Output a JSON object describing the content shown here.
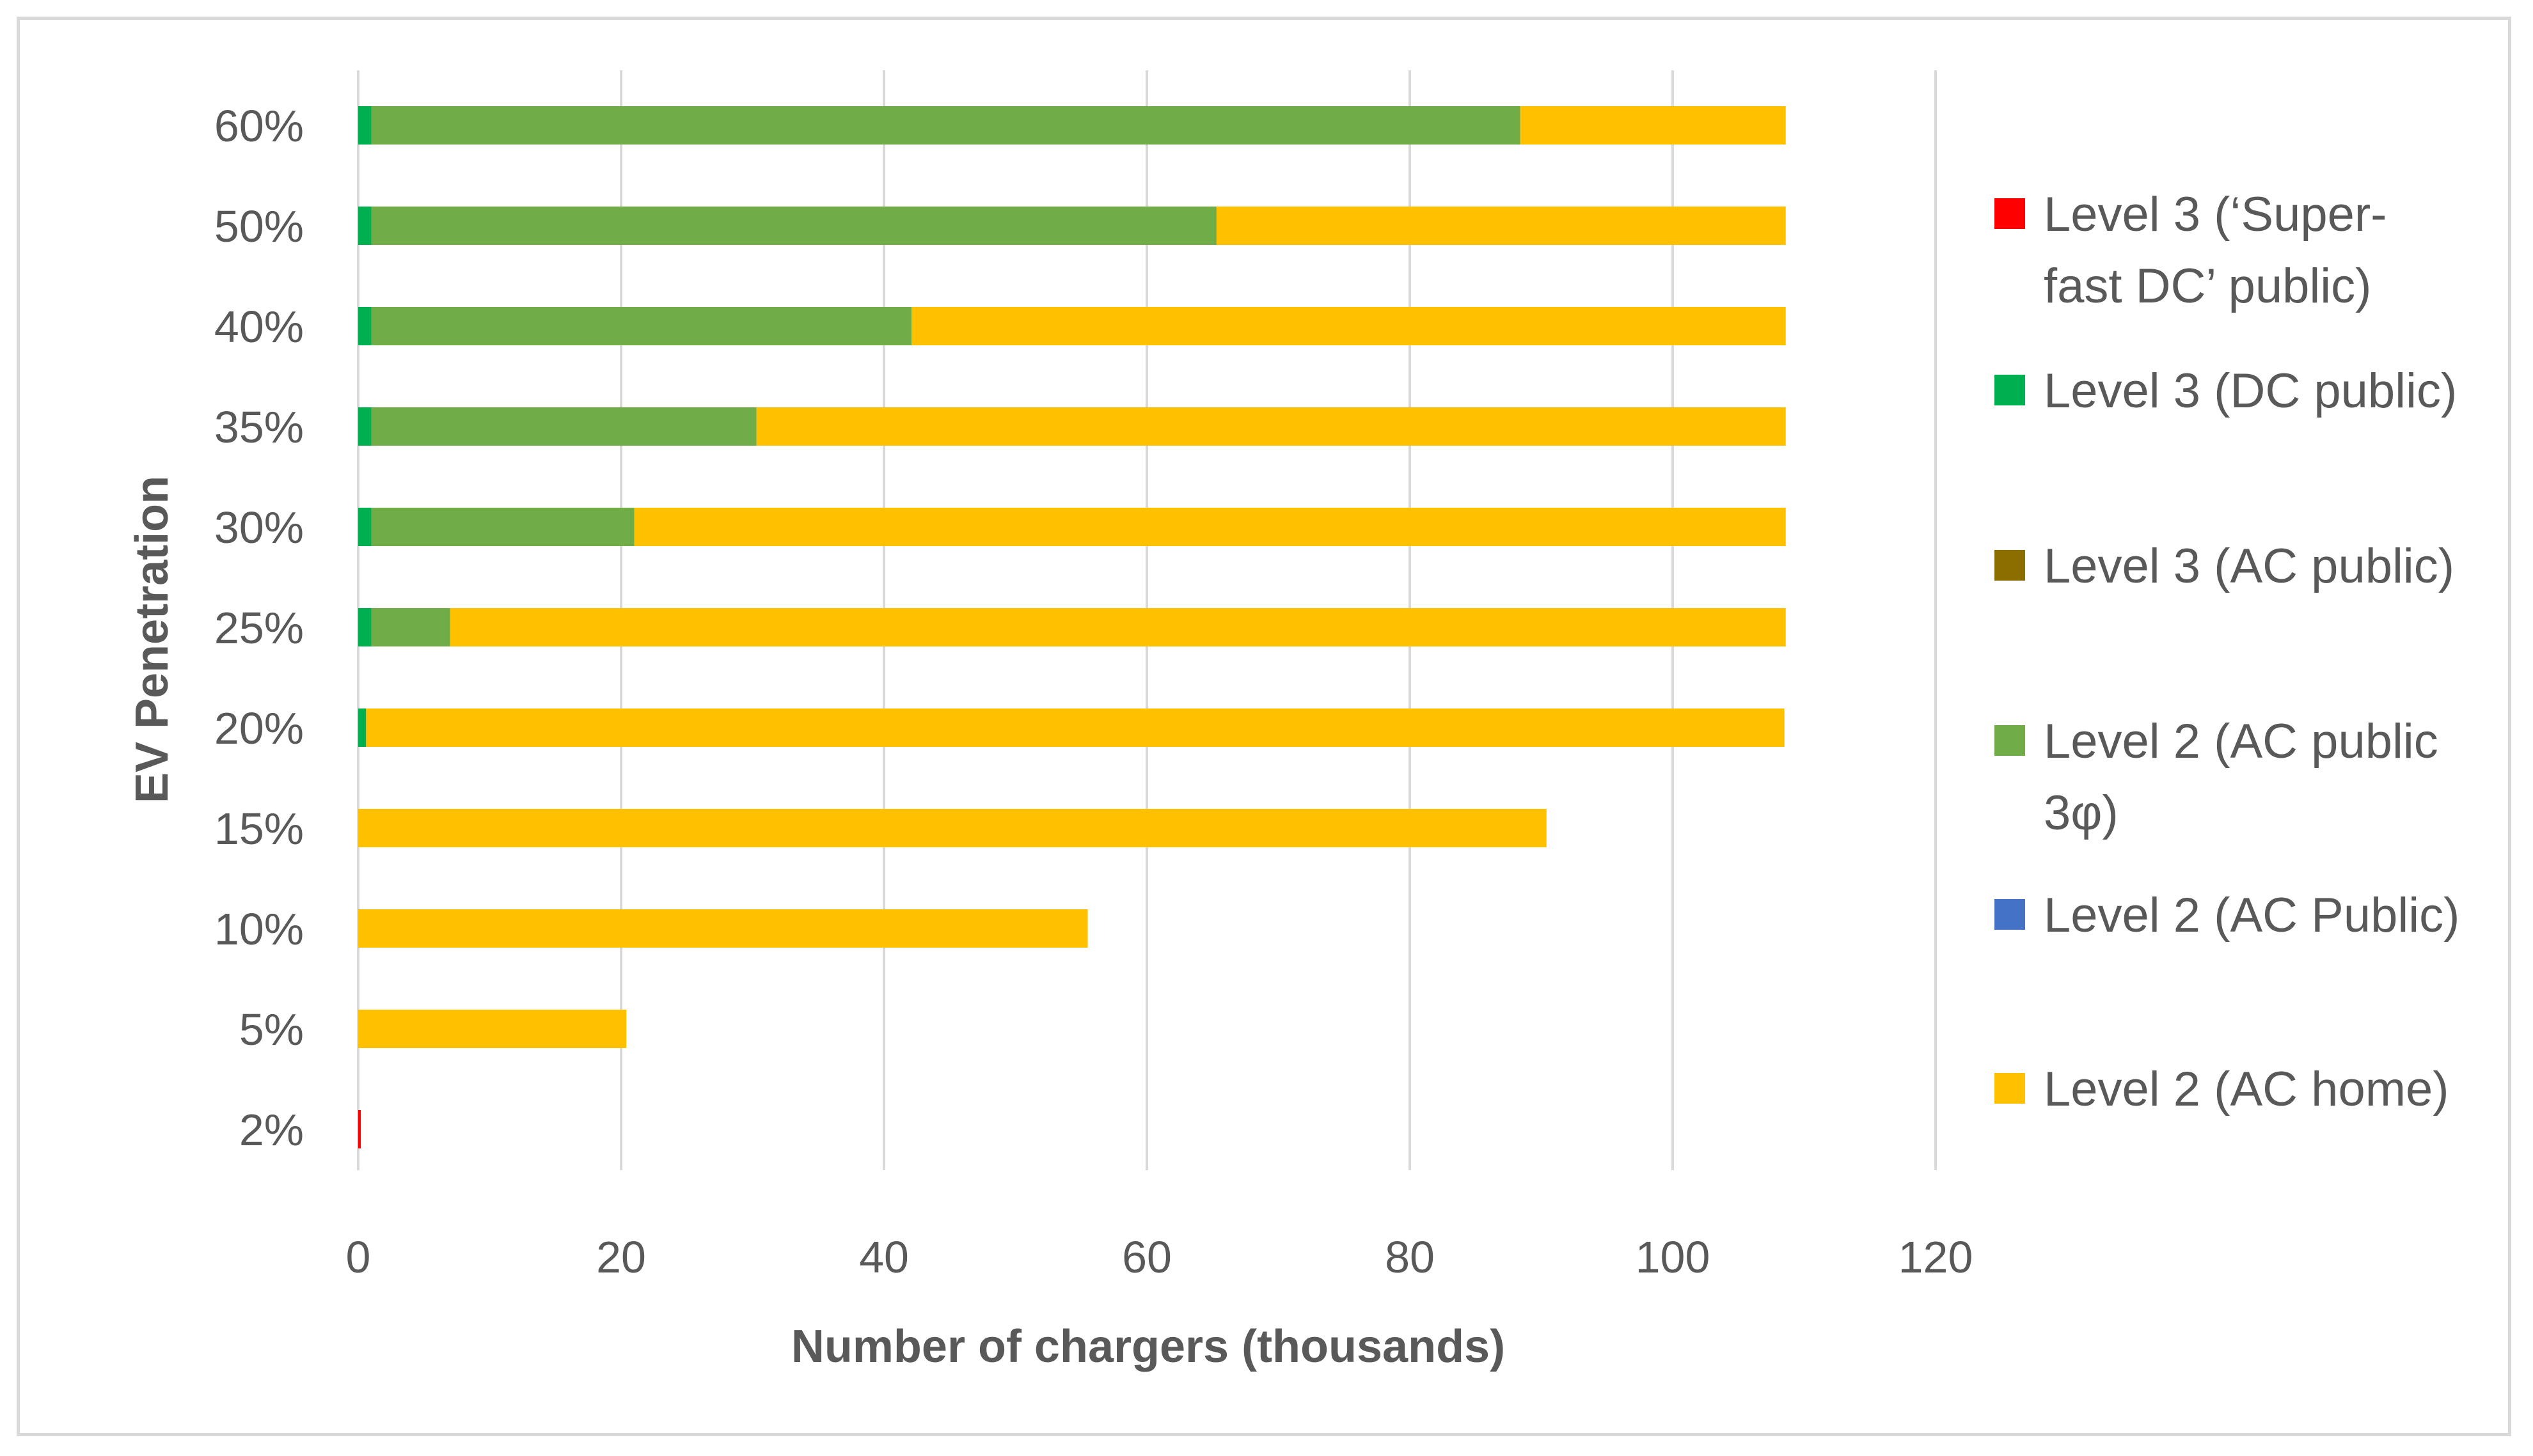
{
  "chart_data": {
    "type": "bar",
    "orientation": "horizontal",
    "stacked": true,
    "title": "",
    "xlabel": "Number of chargers (thousands)",
    "ylabel": "EV Penetration",
    "xlim": [
      0,
      120
    ],
    "x_ticks": [
      "0",
      "20",
      "40",
      "60",
      "80",
      "100",
      "120"
    ],
    "grid": "vertical",
    "legend_position": "right",
    "categories": [
      "2%",
      "5%",
      "10%",
      "15%",
      "20%",
      "25%",
      "30%",
      "35%",
      "40%",
      "50%",
      "60%"
    ],
    "series": [
      {
        "name": "Level 3 (‘Super-fast DC’ public)",
        "legend_lines": [
          "Level 3 (‘Super-",
          "fast DC’ public)"
        ],
        "color": "#ff0000",
        "values": [
          0.2,
          0,
          0,
          0,
          0,
          0,
          0,
          0,
          0,
          0,
          0
        ]
      },
      {
        "name": "Level 3 (DC public)",
        "legend_lines": [
          "Level 3 (DC public)"
        ],
        "color": "#00b050",
        "values": [
          0,
          0,
          0,
          0,
          0.6,
          1.0,
          1.0,
          1.0,
          1.0,
          1.0,
          1.0
        ]
      },
      {
        "name": "Level 3 (AC public)",
        "legend_lines": [
          "Level 3 (AC public)"
        ],
        "color": "#8c6d00",
        "values": [
          0,
          0,
          0,
          0,
          0,
          0,
          0,
          0,
          0,
          0,
          0
        ]
      },
      {
        "name": "Level 2 (AC public 3φ)",
        "legend_lines": [
          "Level 2 (AC public",
          "3φ)"
        ],
        "color": "#70ad47",
        "values": [
          0,
          0,
          0,
          0,
          0,
          6.0,
          20.0,
          29.3,
          41.1,
          64.3,
          87.4
        ]
      },
      {
        "name": "Level 2 (AC Public)",
        "legend_lines": [
          "Level 2 (AC Public)"
        ],
        "color": "#4472c4",
        "values": [
          0,
          0,
          0,
          0,
          0,
          0,
          0,
          0,
          0,
          0,
          0
        ]
      },
      {
        "name": "Level 2 (AC home)",
        "legend_lines": [
          "Level 2 (AC home)"
        ],
        "color": "#ffc000",
        "values": [
          0,
          20.4,
          55.5,
          90.4,
          107.9,
          101.6,
          87.6,
          78.3,
          66.5,
          43.3,
          20.2
        ]
      }
    ]
  }
}
